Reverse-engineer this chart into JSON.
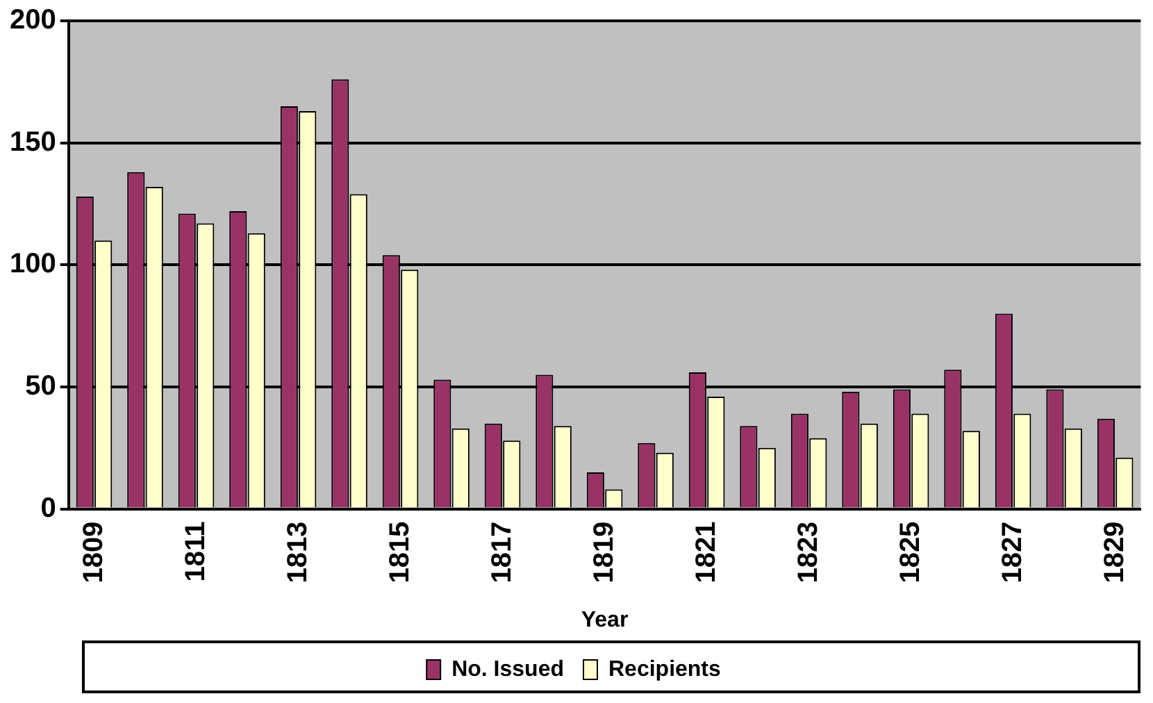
{
  "chart_data": {
    "type": "bar",
    "xlabel": "Year",
    "categories": [
      "1809",
      null,
      "1811",
      null,
      "1813",
      null,
      "1815",
      null,
      "1817",
      null,
      "1819",
      null,
      "1821",
      null,
      "1823",
      null,
      "1825",
      null,
      "1827",
      null,
      "1829"
    ],
    "series": [
      {
        "name": "No. Issued",
        "color": "#993366",
        "values": [
          128,
          138,
          121,
          122,
          165,
          176,
          104,
          53,
          35,
          55,
          15,
          27,
          56,
          34,
          39,
          48,
          49,
          57,
          80,
          49,
          37
        ]
      },
      {
        "name": "Recipients",
        "color": "#ffffcc",
        "values": [
          110,
          132,
          117,
          113,
          163,
          129,
          98,
          33,
          28,
          34,
          8,
          23,
          46,
          25,
          29,
          35,
          39,
          32,
          39,
          33,
          21
        ]
      }
    ],
    "ylim": [
      0,
      200
    ],
    "yticks": [
      0,
      50,
      100,
      150,
      200
    ],
    "grid": "y",
    "legend": "bottom"
  }
}
